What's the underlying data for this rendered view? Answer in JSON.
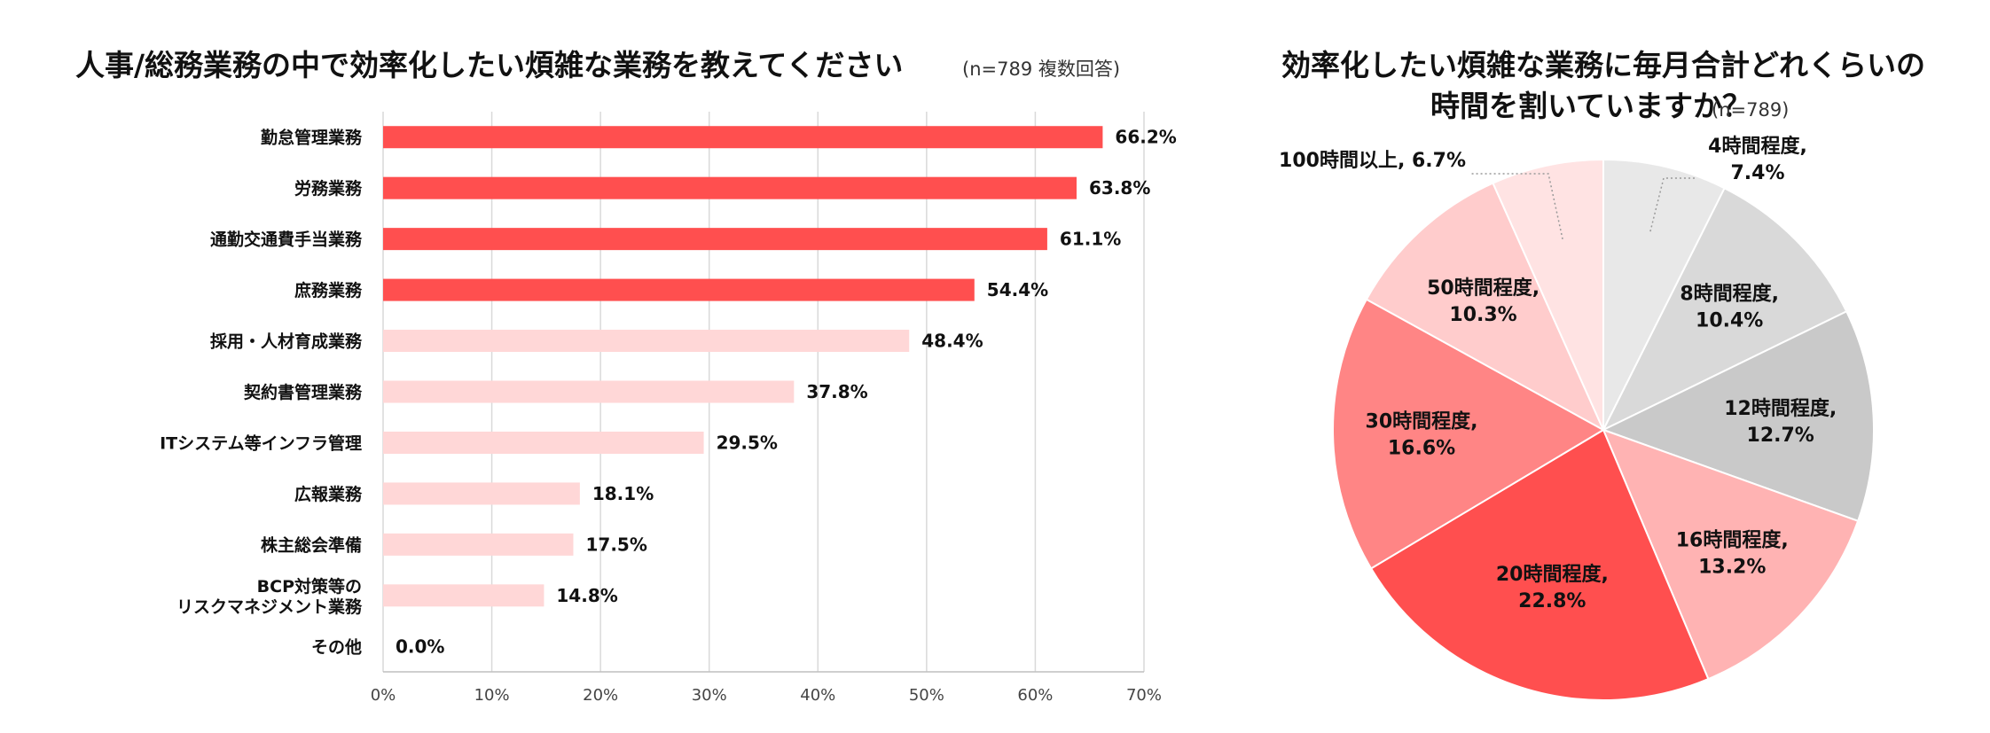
{
  "chart_data": [
    {
      "type": "bar",
      "orientation": "horizontal",
      "title": "人事/総務業務の中で効率化したい煩雑な業務を教えてください",
      "subtitle": "(n=789  複数回答)",
      "categories": [
        "勤怠管理業務",
        "労務業務",
        "通勤交通費手当業務",
        "庶務業務",
        "採用・人材育成業務",
        "契約書管理業務",
        "ITシステム等インフラ管理",
        "広報業務",
        "株主総会準備",
        "BCP対策等の\nリスクマネジメント業務",
        "その他"
      ],
      "values": [
        66.2,
        63.8,
        61.1,
        54.4,
        48.4,
        37.8,
        29.5,
        18.1,
        17.5,
        14.8,
        0.0
      ],
      "value_labels": [
        "66.2%",
        "63.8%",
        "61.1%",
        "54.4%",
        "48.4%",
        "37.8%",
        "29.5%",
        "18.1%",
        "17.5%",
        "14.8%",
        "0.0%"
      ],
      "highlight": [
        true,
        true,
        true,
        true,
        false,
        false,
        false,
        false,
        false,
        false,
        false
      ],
      "xlim": [
        0,
        70
      ],
      "xticks": [
        "0%",
        "10%",
        "20%",
        "30%",
        "40%",
        "50%",
        "60%",
        "70%"
      ],
      "grid": true,
      "colors": {
        "highlight": "#FF4F4F",
        "normal": "#FFD7D7",
        "grid": "#D9D9D9"
      }
    },
    {
      "type": "pie",
      "title_line1": "効率化したい煩雑な業務に毎月合計どれくらいの",
      "title_line2": "時間を割いていますか？",
      "subtitle": "(n=789)",
      "slices": [
        {
          "label": "4時間程度,",
          "pct": "7.4%",
          "value": 7.4,
          "color": "#E8E8E8"
        },
        {
          "label": "8時間程度,",
          "pct": "10.4%",
          "value": 10.4,
          "color": "#D9D9D9"
        },
        {
          "label": "12時間程度,",
          "pct": "12.7%",
          "value": 12.7,
          "color": "#C9C9C9"
        },
        {
          "label": "16時間程度,",
          "pct": "13.2%",
          "value": 13.2,
          "color": "#FFB3B3"
        },
        {
          "label": "20時間程度,",
          "pct": "22.8%",
          "value": 22.8,
          "color": "#FF4F4F"
        },
        {
          "label": "30時間程度,",
          "pct": "16.6%",
          "value": 16.6,
          "color": "#FF8585"
        },
        {
          "label": "50時間程度,",
          "pct": "10.3%",
          "value": 10.3,
          "color": "#FFCCCC"
        },
        {
          "label": "100時間以上, 6.7%",
          "pct": "",
          "value": 6.7,
          "color": "#FFE3E3"
        }
      ],
      "start": "12 o'clock",
      "direction": "clockwise"
    }
  ]
}
